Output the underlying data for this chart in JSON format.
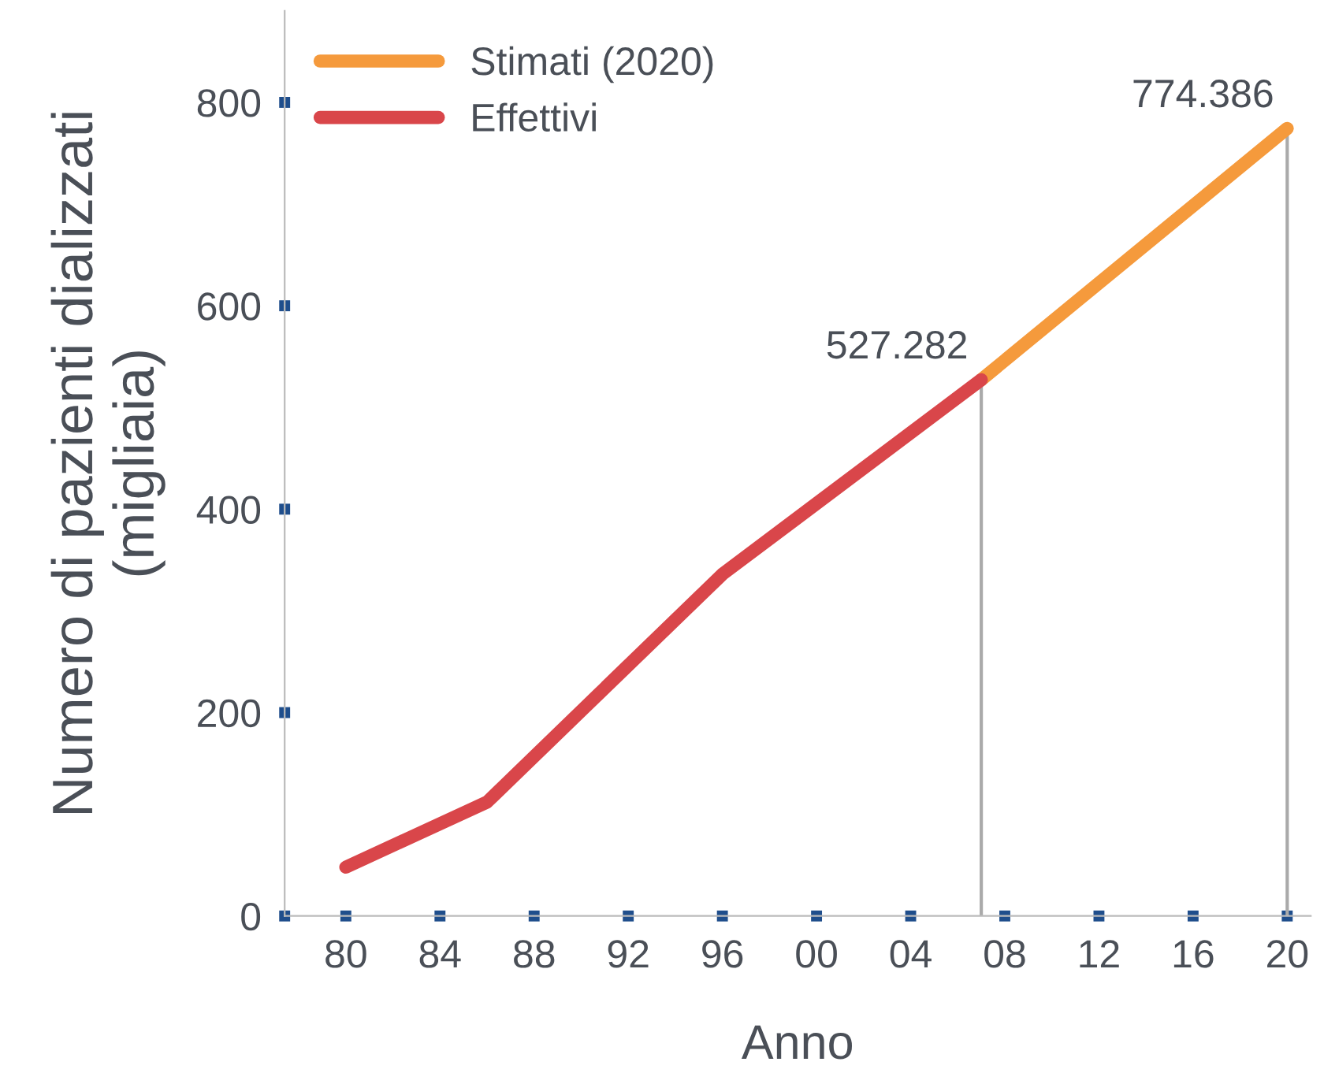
{
  "chart_data": {
    "type": "line",
    "xlabel": "Anno",
    "ylabel": "Numero di pazienti dializzati\n(migliaia)",
    "series": [
      {
        "name": "Stimati (2020)",
        "color": "#f59a3c",
        "x": [
          2007,
          2020
        ],
        "values": [
          527.282,
          774.386
        ],
        "value_labels": [
          null,
          "774.386"
        ]
      },
      {
        "name": "Effettivi",
        "color": "#d9464a",
        "x": [
          1980,
          1986,
          1996,
          2007
        ],
        "values": [
          48,
          112,
          336,
          527.282
        ],
        "value_labels": [
          null,
          null,
          null,
          "527.282"
        ]
      }
    ],
    "ref_lines": [
      {
        "axis": "x",
        "value": 2007,
        "color": "#aaaaaa"
      },
      {
        "axis": "x",
        "value": 2020,
        "color": "#aaaaaa"
      }
    ],
    "xlim": [
      1977.4,
      2021
    ],
    "ylim": [
      0,
      890
    ],
    "xticks": [
      {
        "value": 1980,
        "label": "80"
      },
      {
        "value": 1984,
        "label": "84"
      },
      {
        "value": 1988,
        "label": "88"
      },
      {
        "value": 1992,
        "label": "92"
      },
      {
        "value": 1996,
        "label": "96"
      },
      {
        "value": 2000,
        "label": "00"
      },
      {
        "value": 2004,
        "label": "04"
      },
      {
        "value": 2008,
        "label": "08"
      },
      {
        "value": 2012,
        "label": "12"
      },
      {
        "value": 2016,
        "label": "16"
      },
      {
        "value": 2020,
        "label": "20"
      }
    ],
    "yticks": [
      0,
      200,
      400,
      600,
      800
    ],
    "legend": "top left",
    "grid": false,
    "marker": "none",
    "line_style": "solid"
  }
}
